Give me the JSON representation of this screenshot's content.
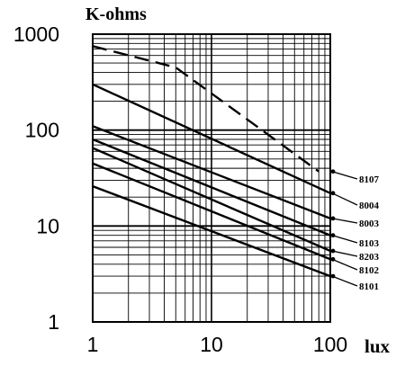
{
  "chart_data": {
    "type": "line",
    "title": "",
    "xlabel": "lux",
    "ylabel": "K-ohms",
    "xscale": "log",
    "yscale": "log",
    "xlim": [
      1,
      100
    ],
    "ylim": [
      1,
      1000
    ],
    "xticks": [
      "1",
      "10",
      "100"
    ],
    "yticks": [
      "1",
      "10",
      "100",
      "1000"
    ],
    "grid": true,
    "series": [
      {
        "name": "8107",
        "x": [
          1,
          5,
          80
        ],
        "y": [
          750,
          450,
          37
        ],
        "style": "dashed"
      },
      {
        "name": "8004",
        "x": [
          1,
          100
        ],
        "y": [
          300,
          22
        ],
        "style": "solid"
      },
      {
        "name": "8003",
        "x": [
          1,
          100
        ],
        "y": [
          110,
          12
        ],
        "style": "solid"
      },
      {
        "name": "8103",
        "x": [
          1,
          100
        ],
        "y": [
          80,
          8
        ],
        "style": "solid"
      },
      {
        "name": "8203",
        "x": [
          1,
          100
        ],
        "y": [
          65,
          5.5
        ],
        "style": "solid"
      },
      {
        "name": "8102",
        "x": [
          1,
          100
        ],
        "y": [
          45,
          4.5
        ],
        "style": "solid"
      },
      {
        "name": "8101",
        "x": [
          1,
          100
        ],
        "y": [
          26,
          3
        ],
        "style": "solid"
      }
    ],
    "annotation_labels": [
      "8107",
      "8004",
      "8003",
      "8103",
      "8203",
      "8102",
      "8101"
    ]
  }
}
